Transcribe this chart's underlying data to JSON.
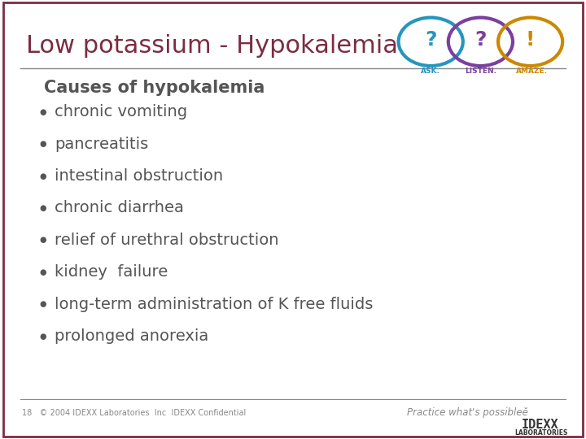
{
  "title": "Low potassium - Hypokalemia",
  "title_color": "#7B2D42",
  "title_fontsize": 22,
  "bg_color": "#FFFFFF",
  "border_color": "#7B2D42",
  "section_header": "Causes of hypokalemia",
  "section_header_fontsize": 15,
  "section_header_color": "#555555",
  "bullet_items": [
    "chronic vomiting",
    "pancreatitis",
    "intestinal obstruction",
    "chronic diarrhea",
    "relief of urethral obstruction",
    "kidney  failure",
    "long-term administration of K free fluids",
    "prolonged anorexia"
  ],
  "bullet_color": "#555555",
  "bullet_fontsize": 14,
  "bullet_dot_color": "#555555",
  "footer_left": "18   © 2004 IDEXX Laboratories  Inc  IDEXX Confidential",
  "footer_right": "Practice what's possibleĕ",
  "footer_color": "#888888",
  "footer_fontsize": 7,
  "divider_color": "#888888",
  "top_divider_color": "#888888",
  "teal": "#2596be",
  "purple": "#7B3F9E",
  "gold": "#CC8800"
}
